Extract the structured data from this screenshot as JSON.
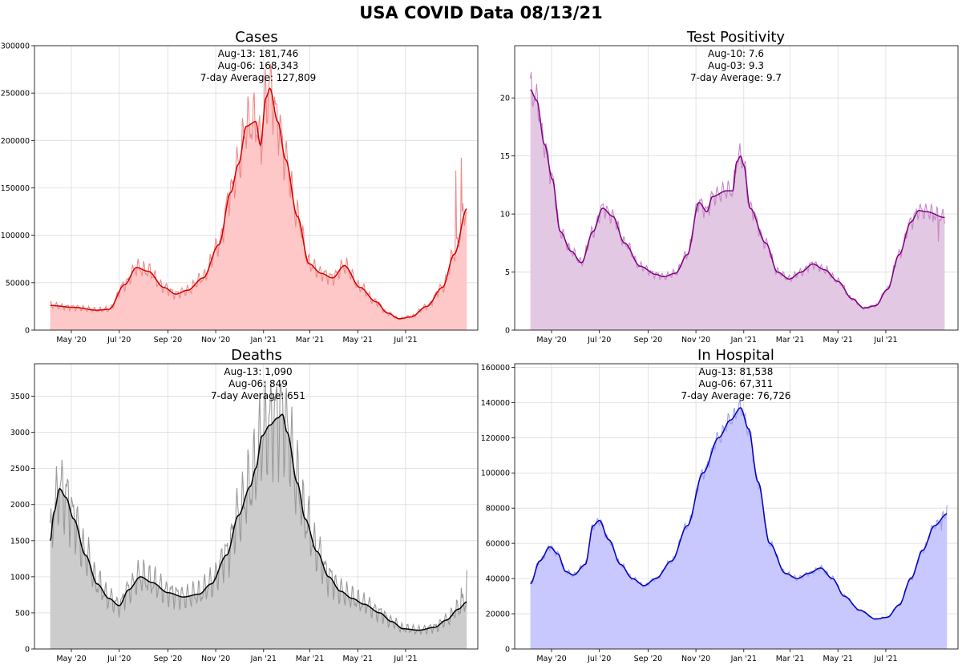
{
  "figure": {
    "title": "USA COVID Data 08/13/21"
  },
  "chart_data": [
    {
      "id": "cases",
      "type": "area",
      "title": "Cases",
      "annotations": [
        "Aug-13: 181,746",
        "Aug-06: 168,343",
        "7-day Average: 127,809"
      ],
      "colors": {
        "fill": "#ffc8c8",
        "raw": "#f08a8a",
        "avg": "#d40000"
      },
      "ylim": [
        0,
        300000
      ],
      "yticks": [
        0,
        50000,
        100000,
        150000,
        200000,
        250000,
        300000
      ],
      "ytick_labels": [
        "0",
        "50000",
        "100000",
        "150000",
        "200000",
        "250000",
        "300000"
      ],
      "xlim": [
        -20,
        545
      ],
      "x_ticks": [
        {
          "day": 27,
          "label": "May '20"
        },
        {
          "day": 88,
          "label": "Jul '20"
        },
        {
          "day": 150,
          "label": "Sep '20"
        },
        {
          "day": 211,
          "label": "Nov '20"
        },
        {
          "day": 272,
          "label": "Jan '21"
        },
        {
          "day": 331,
          "label": "Mar '21"
        },
        {
          "day": 392,
          "label": "May '21"
        },
        {
          "day": 453,
          "label": "Jul '21"
        }
      ],
      "start_day": 0,
      "end_day": 531,
      "avg_keypoints": [
        [
          0,
          26000
        ],
        [
          30,
          24000
        ],
        [
          60,
          21000
        ],
        [
          75,
          22000
        ],
        [
          95,
          48000
        ],
        [
          110,
          66000
        ],
        [
          125,
          62000
        ],
        [
          145,
          45000
        ],
        [
          160,
          38000
        ],
        [
          175,
          42000
        ],
        [
          195,
          55000
        ],
        [
          215,
          90000
        ],
        [
          230,
          145000
        ],
        [
          240,
          175000
        ],
        [
          250,
          215000
        ],
        [
          262,
          220000
        ],
        [
          268,
          195000
        ],
        [
          275,
          245000
        ],
        [
          280,
          255000
        ],
        [
          290,
          220000
        ],
        [
          300,
          180000
        ],
        [
          315,
          120000
        ],
        [
          330,
          70000
        ],
        [
          345,
          60000
        ],
        [
          360,
          55000
        ],
        [
          375,
          68000
        ],
        [
          395,
          45000
        ],
        [
          415,
          30000
        ],
        [
          430,
          18000
        ],
        [
          445,
          12000
        ],
        [
          460,
          14000
        ],
        [
          480,
          25000
        ],
        [
          500,
          45000
        ],
        [
          515,
          80000
        ],
        [
          531,
          127809
        ]
      ],
      "raw_noise": 0.16,
      "raw_endpoints": [
        [
          517,
          168343
        ],
        [
          524,
          181746
        ]
      ]
    },
    {
      "id": "test_positivity",
      "type": "area",
      "title": "Test Positivity",
      "annotations": [
        "Aug-10: 7.6",
        "Aug-03: 9.3",
        "7-day Average: 9.7"
      ],
      "colors": {
        "fill": "#e3c8e3",
        "raw": "#c58ac5",
        "avg": "#800080"
      },
      "ylim": [
        0,
        24.5
      ],
      "yticks": [
        0,
        5,
        10,
        15,
        20
      ],
      "ytick_labels": [
        "0",
        "5",
        "10",
        "15",
        "20"
      ],
      "xlim": [
        -20,
        545
      ],
      "x_ticks": [
        {
          "day": 27,
          "label": "May '20"
        },
        {
          "day": 88,
          "label": "Jul '20"
        },
        {
          "day": 150,
          "label": "Sep '20"
        },
        {
          "day": 211,
          "label": "Nov '20"
        },
        {
          "day": 272,
          "label": "Jan '21"
        },
        {
          "day": 331,
          "label": "Mar '21"
        },
        {
          "day": 392,
          "label": "May '21"
        },
        {
          "day": 453,
          "label": "Jul '21"
        }
      ],
      "start_day": 0,
      "end_day": 528,
      "avg_keypoints": [
        [
          0,
          20.7
        ],
        [
          8,
          19.8
        ],
        [
          18,
          16
        ],
        [
          28,
          13
        ],
        [
          38,
          8.5
        ],
        [
          52,
          6.8
        ],
        [
          65,
          5.8
        ],
        [
          80,
          8.5
        ],
        [
          92,
          10.5
        ],
        [
          105,
          9.8
        ],
        [
          120,
          7.5
        ],
        [
          140,
          5.5
        ],
        [
          160,
          4.8
        ],
        [
          170,
          4.6
        ],
        [
          185,
          4.9
        ],
        [
          200,
          6.5
        ],
        [
          215,
          11
        ],
        [
          225,
          10.2
        ],
        [
          232,
          11.5
        ],
        [
          250,
          12
        ],
        [
          258,
          12
        ],
        [
          263,
          14.5
        ],
        [
          268,
          15
        ],
        [
          272,
          14.2
        ],
        [
          280,
          10.5
        ],
        [
          300,
          7.5
        ],
        [
          315,
          5
        ],
        [
          330,
          4.4
        ],
        [
          345,
          5
        ],
        [
          360,
          5.7
        ],
        [
          375,
          5.2
        ],
        [
          392,
          4.2
        ],
        [
          410,
          2.7
        ],
        [
          425,
          1.9
        ],
        [
          440,
          2.1
        ],
        [
          455,
          3.5
        ],
        [
          470,
          6.5
        ],
        [
          485,
          9.3
        ],
        [
          495,
          10.3
        ],
        [
          505,
          10.2
        ],
        [
          528,
          9.7
        ]
      ],
      "raw_noise": 0.08,
      "raw_endpoints": [
        [
          513,
          9.3
        ],
        [
          520,
          7.6
        ]
      ]
    },
    {
      "id": "deaths",
      "type": "area",
      "title": "Deaths",
      "annotations": [
        "Aug-13: 1,090",
        "Aug-06: 849",
        "7-day Average: 651"
      ],
      "colors": {
        "fill": "#cccccc",
        "raw": "#9a9a9a",
        "avg": "#000000"
      },
      "ylim": [
        0,
        3950
      ],
      "yticks": [
        0,
        500,
        1000,
        1500,
        2000,
        2500,
        3000,
        3500
      ],
      "ytick_labels": [
        "0",
        "500",
        "1000",
        "1500",
        "2000",
        "2500",
        "3000",
        "3500"
      ],
      "xlim": [
        -20,
        545
      ],
      "x_ticks": [
        {
          "day": 27,
          "label": "May '20"
        },
        {
          "day": 88,
          "label": "Jul '20"
        },
        {
          "day": 150,
          "label": "Sep '20"
        },
        {
          "day": 211,
          "label": "Nov '20"
        },
        {
          "day": 272,
          "label": "Jan '21"
        },
        {
          "day": 331,
          "label": "Mar '21"
        },
        {
          "day": 392,
          "label": "May '21"
        },
        {
          "day": 453,
          "label": "Jul '21"
        }
      ],
      "start_day": 0,
      "end_day": 531,
      "avg_keypoints": [
        [
          0,
          1500
        ],
        [
          5,
          1900
        ],
        [
          12,
          2220
        ],
        [
          20,
          2100
        ],
        [
          30,
          1800
        ],
        [
          45,
          1300
        ],
        [
          60,
          900
        ],
        [
          75,
          700
        ],
        [
          88,
          600
        ],
        [
          100,
          820
        ],
        [
          115,
          1000
        ],
        [
          130,
          920
        ],
        [
          150,
          780
        ],
        [
          170,
          720
        ],
        [
          190,
          760
        ],
        [
          205,
          900
        ],
        [
          225,
          1300
        ],
        [
          240,
          1850
        ],
        [
          255,
          2250
        ],
        [
          262,
          2500
        ],
        [
          270,
          2950
        ],
        [
          280,
          3100
        ],
        [
          290,
          3200
        ],
        [
          296,
          3250
        ],
        [
          302,
          3000
        ],
        [
          315,
          2300
        ],
        [
          325,
          1800
        ],
        [
          340,
          1350
        ],
        [
          355,
          1000
        ],
        [
          370,
          800
        ],
        [
          385,
          700
        ],
        [
          400,
          620
        ],
        [
          420,
          500
        ],
        [
          435,
          380
        ],
        [
          450,
          280
        ],
        [
          470,
          260
        ],
        [
          490,
          300
        ],
        [
          505,
          400
        ],
        [
          520,
          550
        ],
        [
          531,
          651
        ]
      ],
      "raw_noise": 0.28,
      "raw_endpoints": [
        [
          524,
          849
        ],
        [
          531,
          1090
        ]
      ]
    },
    {
      "id": "in_hospital",
      "type": "area",
      "title": "In Hospital",
      "annotations": [
        "Aug-13: 81,538",
        "Aug-06: 67,311",
        "7-day Average: 76,726"
      ],
      "colors": {
        "fill": "#c8c8ff",
        "raw": "#a0a0e8",
        "avg": "#0000c0"
      },
      "ylim": [
        0,
        162000
      ],
      "yticks": [
        0,
        20000,
        40000,
        60000,
        80000,
        100000,
        120000,
        140000,
        160000
      ],
      "ytick_labels": [
        "0",
        "20000",
        "40000",
        "60000",
        "80000",
        "100000",
        "120000",
        "140000",
        "160000"
      ],
      "xlim": [
        -20,
        545
      ],
      "x_ticks": [
        {
          "day": 27,
          "label": "May '20"
        },
        {
          "day": 88,
          "label": "Jul '20"
        },
        {
          "day": 150,
          "label": "Sep '20"
        },
        {
          "day": 211,
          "label": "Nov '20"
        },
        {
          "day": 272,
          "label": "Jan '21"
        },
        {
          "day": 331,
          "label": "Mar '21"
        },
        {
          "day": 392,
          "label": "May '21"
        },
        {
          "day": 453,
          "label": "Jul '21"
        }
      ],
      "start_day": 0,
      "end_day": 531,
      "avg_keypoints": [
        [
          0,
          37000
        ],
        [
          12,
          50000
        ],
        [
          25,
          58000
        ],
        [
          35,
          54000
        ],
        [
          45,
          44000
        ],
        [
          55,
          42000
        ],
        [
          70,
          48000
        ],
        [
          80,
          70000
        ],
        [
          88,
          73000
        ],
        [
          100,
          62000
        ],
        [
          115,
          48000
        ],
        [
          130,
          40000
        ],
        [
          145,
          36000
        ],
        [
          160,
          40000
        ],
        [
          180,
          50000
        ],
        [
          200,
          70000
        ],
        [
          220,
          100000
        ],
        [
          240,
          120000
        ],
        [
          255,
          130000
        ],
        [
          268,
          137000
        ],
        [
          278,
          125000
        ],
        [
          290,
          95000
        ],
        [
          305,
          60000
        ],
        [
          325,
          43000
        ],
        [
          340,
          40000
        ],
        [
          355,
          43000
        ],
        [
          370,
          46000
        ],
        [
          385,
          40000
        ],
        [
          400,
          30000
        ],
        [
          420,
          22000
        ],
        [
          440,
          17000
        ],
        [
          455,
          18000
        ],
        [
          470,
          25000
        ],
        [
          485,
          40000
        ],
        [
          500,
          56000
        ],
        [
          515,
          70000
        ],
        [
          531,
          76726
        ]
      ],
      "raw_noise": 0.04,
      "raw_endpoints": [
        [
          524,
          67311
        ],
        [
          531,
          81538
        ]
      ]
    }
  ]
}
